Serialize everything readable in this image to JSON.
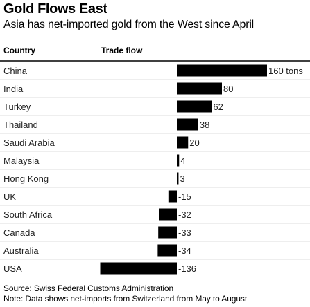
{
  "chart_data": {
    "type": "bar",
    "orientation": "horizontal",
    "title": "Gold Flows East",
    "subtitle": "Asia has net-imported gold from the West since April",
    "column_headers": [
      "Country",
      "Trade flow"
    ],
    "categories": [
      "China",
      "India",
      "Turkey",
      "Thailand",
      "Saudi Arabia",
      "Malaysia",
      "Hong Kong",
      "UK",
      "South Africa",
      "Canada",
      "Australia",
      "USA"
    ],
    "values": [
      160,
      80,
      62,
      38,
      20,
      4,
      3,
      -15,
      -32,
      -33,
      -34,
      -136
    ],
    "value_labels": [
      "160 tons",
      "80",
      "62",
      "38",
      "20",
      "4",
      "3",
      "-15",
      "-32",
      "-33",
      "-34",
      "-136"
    ],
    "bar_color": "#000000",
    "grid": false,
    "legend": "none"
  },
  "footer": {
    "source": "Source: Swiss Federal Customs Administration",
    "note": "Note: Data shows net-imports from Switzerland from May to August"
  }
}
